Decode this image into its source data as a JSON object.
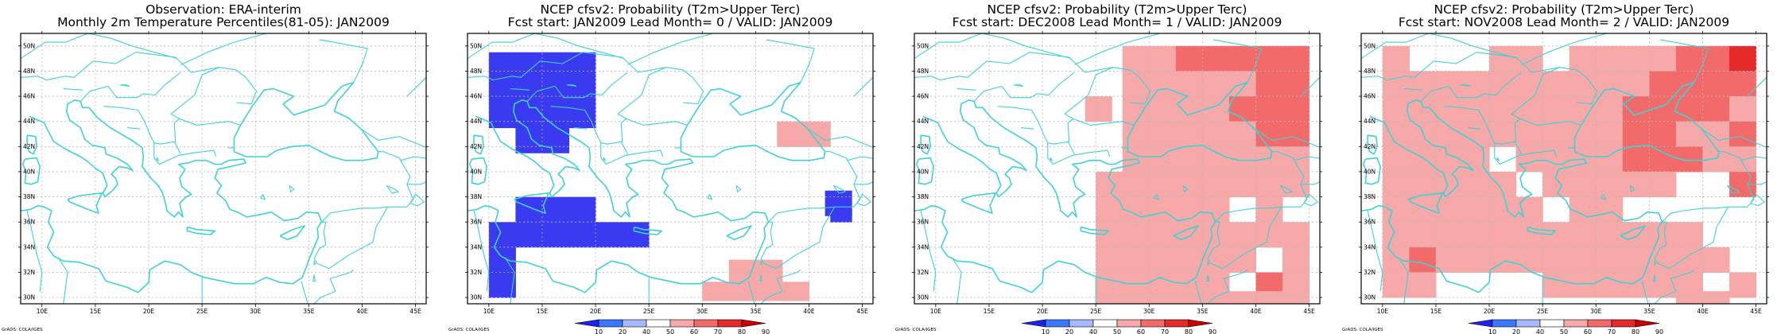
{
  "panels": [
    {
      "title_line1": "Observation: ERA-interim",
      "title_line2": "Monthly 2m Temperature Percentiles(81-05): JAN2009",
      "colorbar": false,
      "cells": []
    },
    {
      "title_line1": "NCEP cfsv2: Probability (T2m>Upper Terc)",
      "title_line2": "Fcst start: JAN2009  Lead Month= 0 / VALID: JAN2009",
      "colorbar": true,
      "cells": [
        {
          "lon": 10,
          "lat": 48.5,
          "w": 2.5,
          "h": 2,
          "bin": "10-20"
        },
        {
          "lon": 12.5,
          "lat": 48.5,
          "w": 2.5,
          "h": 2,
          "bin": "10-20"
        },
        {
          "lon": 15,
          "lat": 48.5,
          "w": 2.5,
          "h": 2,
          "bin": "10-20"
        },
        {
          "lon": 17.5,
          "lat": 48.5,
          "w": 2.5,
          "h": 2,
          "bin": "10-20"
        },
        {
          "lon": 10,
          "lat": 46.5,
          "w": 2.5,
          "h": 2,
          "bin": "10-20"
        },
        {
          "lon": 12.5,
          "lat": 46.5,
          "w": 2.5,
          "h": 2,
          "bin": "10-20"
        },
        {
          "lon": 15,
          "lat": 46.5,
          "w": 2.5,
          "h": 2,
          "bin": "10-20"
        },
        {
          "lon": 17.5,
          "lat": 46.5,
          "w": 2.5,
          "h": 2,
          "bin": "10-20"
        },
        {
          "lon": 10,
          "lat": 44.5,
          "w": 2.5,
          "h": 2,
          "bin": "10-20"
        },
        {
          "lon": 12.5,
          "lat": 44.5,
          "w": 2.5,
          "h": 2,
          "bin": "10-20"
        },
        {
          "lon": 15,
          "lat": 44.5,
          "w": 2.5,
          "h": 2,
          "bin": "10-20"
        },
        {
          "lon": 17.5,
          "lat": 44.5,
          "w": 2.5,
          "h": 2,
          "bin": "10-20"
        },
        {
          "lon": 12.5,
          "lat": 42.5,
          "w": 2.5,
          "h": 2,
          "bin": "10-20"
        },
        {
          "lon": 15,
          "lat": 42.5,
          "w": 2.5,
          "h": 2,
          "bin": "10-20"
        },
        {
          "lon": 12.5,
          "lat": 37,
          "w": 2.5,
          "h": 2,
          "bin": "10-20"
        },
        {
          "lon": 15,
          "lat": 37,
          "w": 2.5,
          "h": 2,
          "bin": "10-20"
        },
        {
          "lon": 17.5,
          "lat": 37,
          "w": 2.5,
          "h": 2,
          "bin": "10-20"
        },
        {
          "lon": 10,
          "lat": 35,
          "w": 2.5,
          "h": 2,
          "bin": "10-20"
        },
        {
          "lon": 12.5,
          "lat": 35,
          "w": 2.5,
          "h": 2,
          "bin": "10-20"
        },
        {
          "lon": 15,
          "lat": 35,
          "w": 2.5,
          "h": 2,
          "bin": "10-20"
        },
        {
          "lon": 17.5,
          "lat": 35,
          "w": 2.5,
          "h": 2,
          "bin": "10-20"
        },
        {
          "lon": 20,
          "lat": 35,
          "w": 2.5,
          "h": 2,
          "bin": "10-20"
        },
        {
          "lon": 22.5,
          "lat": 35,
          "w": 2.5,
          "h": 2,
          "bin": "10-20"
        },
        {
          "lon": 10,
          "lat": 33,
          "w": 2.5,
          "h": 2,
          "bin": "10-20"
        },
        {
          "lon": 10,
          "lat": 31,
          "w": 2.5,
          "h": 2,
          "bin": "10-20"
        },
        {
          "lon": 41.5,
          "lat": 37.5,
          "w": 2.5,
          "h": 2,
          "bin": "10-20"
        },
        {
          "lon": 42,
          "lat": 36.5,
          "w": 2,
          "h": 1,
          "bin": "10-20"
        },
        {
          "lon": 37,
          "lat": 43,
          "w": 2.5,
          "h": 2,
          "bin": "50-60"
        },
        {
          "lon": 39.5,
          "lat": 43,
          "w": 2.5,
          "h": 2,
          "bin": "50-60"
        },
        {
          "lon": 32.5,
          "lat": 32,
          "w": 2.5,
          "h": 2,
          "bin": "50-60"
        },
        {
          "lon": 35,
          "lat": 32,
          "w": 2.5,
          "h": 2,
          "bin": "50-60"
        },
        {
          "lon": 30,
          "lat": 30.5,
          "w": 2.5,
          "h": 1.5,
          "bin": "50-60"
        },
        {
          "lon": 32.5,
          "lat": 30.5,
          "w": 2.5,
          "h": 1.5,
          "bin": "50-60"
        },
        {
          "lon": 35,
          "lat": 30.5,
          "w": 2.5,
          "h": 1.5,
          "bin": "50-60"
        },
        {
          "lon": 37.5,
          "lat": 30.5,
          "w": 2.5,
          "h": 1.5,
          "bin": "50-60"
        }
      ]
    },
    {
      "title_line1": "NCEP cfsv2: Probability (T2m>Upper Terc)",
      "title_line2": "Fcst start: DEC2008  Lead Month= 1 / VALID: JAN2009",
      "colorbar": true,
      "cells": [
        {
          "lon": 27.5,
          "lat": 49,
          "w": 5,
          "h": 2,
          "bin": "50-60"
        },
        {
          "lon": 32.5,
          "lat": 49,
          "w": 5,
          "h": 2,
          "bin": "60-70"
        },
        {
          "lon": 37.5,
          "lat": 49,
          "w": 7.5,
          "h": 2,
          "bin": "60-70"
        },
        {
          "lon": 27.5,
          "lat": 47,
          "w": 10,
          "h": 2,
          "bin": "50-60"
        },
        {
          "lon": 37.5,
          "lat": 47,
          "w": 2.5,
          "h": 2,
          "bin": "50-60"
        },
        {
          "lon": 40,
          "lat": 47,
          "w": 5,
          "h": 2,
          "bin": "60-70"
        },
        {
          "lon": 27.5,
          "lat": 45,
          "w": 10,
          "h": 2,
          "bin": "50-60"
        },
        {
          "lon": 37.5,
          "lat": 45,
          "w": 7.5,
          "h": 2,
          "bin": "60-70"
        },
        {
          "lon": 27.5,
          "lat": 43,
          "w": 12.5,
          "h": 2,
          "bin": "50-60"
        },
        {
          "lon": 40,
          "lat": 43,
          "w": 2.5,
          "h": 2,
          "bin": "60-70"
        },
        {
          "lon": 42.5,
          "lat": 43,
          "w": 2.5,
          "h": 2,
          "bin": "60-70"
        },
        {
          "lon": 27.5,
          "lat": 41,
          "w": 17.5,
          "h": 2,
          "bin": "50-60"
        },
        {
          "lon": 25,
          "lat": 39,
          "w": 2.5,
          "h": 2,
          "bin": "50-60"
        },
        {
          "lon": 27.5,
          "lat": 39,
          "w": 5,
          "h": 2,
          "bin": "50-60"
        },
        {
          "lon": 32.5,
          "lat": 39,
          "w": 12.5,
          "h": 2,
          "bin": "50-60"
        },
        {
          "lon": 25,
          "lat": 37,
          "w": 12.5,
          "h": 2,
          "bin": "50-60"
        },
        {
          "lon": 40,
          "lat": 37,
          "w": 2.5,
          "h": 2,
          "bin": "50-60"
        },
        {
          "lon": 25,
          "lat": 35,
          "w": 20,
          "h": 2,
          "bin": "50-60"
        },
        {
          "lon": 25,
          "lat": 33,
          "w": 15,
          "h": 2,
          "bin": "50-60"
        },
        {
          "lon": 42.5,
          "lat": 33,
          "w": 2.5,
          "h": 2,
          "bin": "50-60"
        },
        {
          "lon": 25,
          "lat": 31,
          "w": 12.5,
          "h": 2,
          "bin": "50-60"
        },
        {
          "lon": 40,
          "lat": 31,
          "w": 2.5,
          "h": 2,
          "bin": "60-70"
        },
        {
          "lon": 42.5,
          "lat": 31,
          "w": 2.5,
          "h": 2,
          "bin": "50-60"
        },
        {
          "lon": 25,
          "lat": 30,
          "w": 20,
          "h": 1,
          "bin": "50-60"
        },
        {
          "lon": 24,
          "lat": 45,
          "w": 2.5,
          "h": 2,
          "bin": "50-60"
        }
      ]
    },
    {
      "title_line1": "NCEP cfsv2: Probability (T2m>Upper Terc)",
      "title_line2": "Fcst start: NOV2008  Lead Month= 2 / VALID: JAN2009",
      "colorbar": true,
      "cells": [
        {
          "lon": 10,
          "lat": 49,
          "w": 2.5,
          "h": 2,
          "bin": "50-60"
        },
        {
          "lon": 20,
          "lat": 49,
          "w": 5,
          "h": 2,
          "bin": "50-60"
        },
        {
          "lon": 27.5,
          "lat": 49,
          "w": 5,
          "h": 2,
          "bin": "50-60"
        },
        {
          "lon": 32.5,
          "lat": 49,
          "w": 5,
          "h": 2,
          "bin": "50-60"
        },
        {
          "lon": 37.5,
          "lat": 49,
          "w": 5,
          "h": 2,
          "bin": "60-70"
        },
        {
          "lon": 42.5,
          "lat": 49,
          "w": 2.5,
          "h": 2,
          "bin": "70-80"
        },
        {
          "lon": 10,
          "lat": 47,
          "w": 25,
          "h": 2,
          "bin": "50-60"
        },
        {
          "lon": 35,
          "lat": 47,
          "w": 10,
          "h": 2,
          "bin": "60-70"
        },
        {
          "lon": 10,
          "lat": 45,
          "w": 25,
          "h": 2,
          "bin": "50-60"
        },
        {
          "lon": 32.5,
          "lat": 45,
          "w": 10,
          "h": 2,
          "bin": "60-70"
        },
        {
          "lon": 42.5,
          "lat": 45,
          "w": 2.5,
          "h": 2,
          "bin": "50-60"
        },
        {
          "lon": 10,
          "lat": 43,
          "w": 22.5,
          "h": 2,
          "bin": "50-60"
        },
        {
          "lon": 32.5,
          "lat": 43,
          "w": 5,
          "h": 2,
          "bin": "60-70"
        },
        {
          "lon": 37.5,
          "lat": 43,
          "w": 5,
          "h": 2,
          "bin": "50-60"
        },
        {
          "lon": 42.5,
          "lat": 43,
          "w": 2.5,
          "h": 2,
          "bin": "60-70"
        },
        {
          "lon": 10,
          "lat": 41,
          "w": 10,
          "h": 2,
          "bin": "50-60"
        },
        {
          "lon": 22.5,
          "lat": 41,
          "w": 10,
          "h": 2,
          "bin": "50-60"
        },
        {
          "lon": 32.5,
          "lat": 41,
          "w": 7.5,
          "h": 2,
          "bin": "60-70"
        },
        {
          "lon": 40,
          "lat": 41,
          "w": 5,
          "h": 2,
          "bin": "50-60"
        },
        {
          "lon": 10,
          "lat": 39,
          "w": 12.5,
          "h": 2,
          "bin": "50-60"
        },
        {
          "lon": 25,
          "lat": 39,
          "w": 12.5,
          "h": 2,
          "bin": "50-60"
        },
        {
          "lon": 42.5,
          "lat": 39,
          "w": 2.5,
          "h": 2,
          "bin": "60-70"
        },
        {
          "lon": 10,
          "lat": 37,
          "w": 15,
          "h": 2,
          "bin": "50-60"
        },
        {
          "lon": 27.5,
          "lat": 37,
          "w": 5,
          "h": 2,
          "bin": "50-60"
        },
        {
          "lon": 10,
          "lat": 35,
          "w": 30,
          "h": 2,
          "bin": "50-60"
        },
        {
          "lon": 10,
          "lat": 33,
          "w": 2.5,
          "h": 2,
          "bin": "50-60"
        },
        {
          "lon": 12.5,
          "lat": 33,
          "w": 2.5,
          "h": 2,
          "bin": "60-70"
        },
        {
          "lon": 15,
          "lat": 33,
          "w": 27.5,
          "h": 2,
          "bin": "50-60"
        },
        {
          "lon": 10,
          "lat": 31,
          "w": 5,
          "h": 2,
          "bin": "50-60"
        },
        {
          "lon": 25,
          "lat": 31,
          "w": 15,
          "h": 2,
          "bin": "50-60"
        },
        {
          "lon": 42.5,
          "lat": 31,
          "w": 2.5,
          "h": 2,
          "bin": "50-60"
        },
        {
          "lon": 37.5,
          "lat": 30,
          "w": 5,
          "h": 1,
          "bin": "50-60"
        }
      ]
    }
  ],
  "lon_ticks": [
    "10E",
    "15E",
    "20E",
    "25E",
    "30E",
    "35E",
    "40E",
    "45E"
  ],
  "lat_ticks": [
    "30N",
    "32N",
    "34N",
    "36N",
    "38N",
    "40N",
    "42N",
    "44N",
    "46N",
    "48N",
    "50N"
  ],
  "colorbar_labels": [
    "10",
    "20",
    "40",
    "50",
    "60",
    "70",
    "80",
    "90"
  ],
  "colors": {
    "coast": "#3fd2d2",
    "grid": "#b8b8b8",
    "10-20": "#3a3af0",
    "20-40": "#a8b8ff",
    "50-60": "#f7a8a8",
    "60-70": "#f36a6a",
    "70-80": "#e52a2a",
    "80-90": "#c80000"
  },
  "credit": "GrADS: COLA/IGES"
}
